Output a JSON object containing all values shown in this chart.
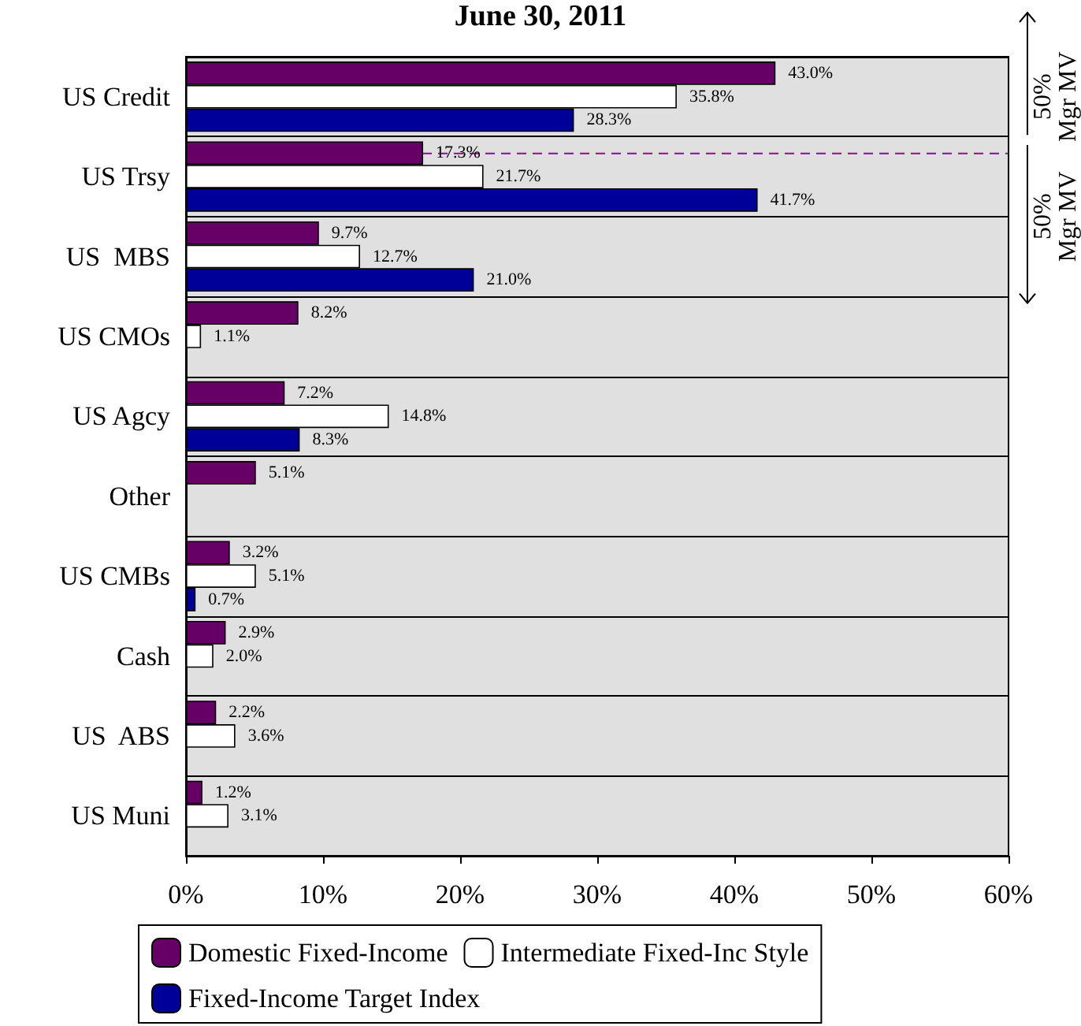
{
  "chart_data": {
    "type": "bar",
    "orientation": "horizontal",
    "title": "June 30, 2011",
    "categories": [
      "US Credit",
      "US Trsy",
      "US  MBS",
      "US CMOs",
      "US Agcy",
      "Other",
      "US CMBs",
      "Cash",
      "US  ABS",
      "US Muni"
    ],
    "series": [
      {
        "name": "Domestic Fixed-Income",
        "color": "#660066",
        "values": [
          43.0,
          17.3,
          9.7,
          8.2,
          7.2,
          5.1,
          3.2,
          2.9,
          2.2,
          1.2
        ],
        "value_labels": [
          "43.0%",
          "17.3%",
          "9.7%",
          "8.2%",
          "7.2%",
          "5.1%",
          "3.2%",
          "2.9%",
          "2.2%",
          "1.2%"
        ]
      },
      {
        "name": "Intermediate Fixed-Inc Style",
        "color": "#ffffff",
        "values": [
          35.8,
          21.7,
          12.7,
          1.1,
          14.8,
          null,
          5.1,
          2.0,
          3.6,
          3.1
        ],
        "value_labels": [
          "35.8%",
          "21.7%",
          "12.7%",
          "1.1%",
          "14.8%",
          null,
          "5.1%",
          "2.0%",
          "3.6%",
          "3.1%"
        ]
      },
      {
        "name": "Fixed-Income Target Index",
        "color": "#000099",
        "values": [
          28.3,
          41.7,
          21.0,
          null,
          8.3,
          null,
          0.7,
          null,
          null,
          null
        ],
        "value_labels": [
          "28.3%",
          "41.7%",
          "21.0%",
          null,
          "8.3%",
          null,
          "0.7%",
          null,
          null,
          null
        ]
      }
    ],
    "xlim": [
      0,
      60
    ],
    "xticks": [
      {
        "value": 0,
        "label": "0%"
      },
      {
        "value": 10,
        "label": "10%"
      },
      {
        "value": 20,
        "label": "20%"
      },
      {
        "value": 30,
        "label": "30%"
      },
      {
        "value": 40,
        "label": "40%"
      },
      {
        "value": 50,
        "label": "50%"
      },
      {
        "value": 60,
        "label": "60%"
      }
    ],
    "ref_lines": [
      {
        "axis": "y",
        "value": "US Trsy",
        "color": "#990099",
        "line_style": "dashed"
      }
    ],
    "annotations": [
      "50%\nMgr MV",
      "50%\nMgr MV"
    ],
    "grid": "y",
    "legend": "bottom"
  }
}
